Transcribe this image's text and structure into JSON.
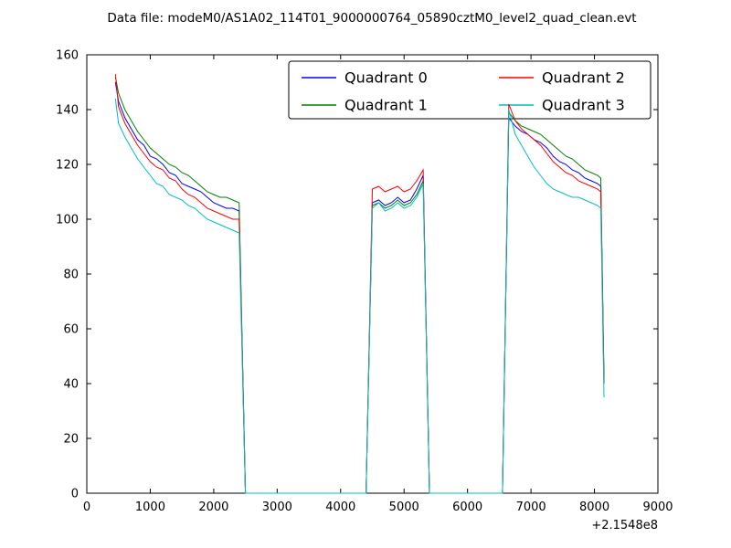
{
  "title": "Data file: modeM0/AS1A02_114T01_9000000764_05890cztM0_level2_quad_clean.evt",
  "chart_data": {
    "type": "line",
    "title": "Data file: modeM0/AS1A02_114T01_9000000764_05890cztM0_level2_quad_clean.evt",
    "xlabel": "",
    "ylabel": "",
    "xlim": [
      0,
      9000
    ],
    "ylim": [
      0,
      160
    ],
    "xticks": [
      0,
      1000,
      2000,
      3000,
      4000,
      5000,
      6000,
      7000,
      8000,
      9000
    ],
    "yticks": [
      0,
      20,
      40,
      60,
      80,
      100,
      120,
      140,
      160
    ],
    "x_offset_label": "+2.1548e8",
    "grid": false,
    "legend_position": "upper center",
    "series": [
      {
        "name": "Quadrant 0",
        "color": "#0000ff",
        "points": [
          [
            450,
            150
          ],
          [
            500,
            143
          ],
          [
            600,
            137
          ],
          [
            700,
            133
          ],
          [
            800,
            129
          ],
          [
            900,
            127
          ],
          [
            1000,
            123
          ],
          [
            1100,
            122
          ],
          [
            1200,
            120
          ],
          [
            1300,
            117
          ],
          [
            1400,
            116
          ],
          [
            1500,
            113
          ],
          [
            1600,
            112
          ],
          [
            1700,
            111
          ],
          [
            1800,
            110
          ],
          [
            1900,
            108
          ],
          [
            2000,
            106
          ],
          [
            2100,
            105
          ],
          [
            2200,
            104
          ],
          [
            2300,
            104
          ],
          [
            2400,
            103
          ],
          [
            2500,
            0
          ],
          [
            4400,
            0
          ],
          [
            4500,
            106
          ],
          [
            4600,
            107
          ],
          [
            4700,
            105
          ],
          [
            4800,
            106
          ],
          [
            4900,
            108
          ],
          [
            5000,
            106
          ],
          [
            5100,
            107
          ],
          [
            5200,
            111
          ],
          [
            5300,
            116
          ],
          [
            5400,
            0
          ],
          [
            6550,
            0
          ],
          [
            6650,
            137
          ],
          [
            6750,
            134
          ],
          [
            6850,
            132
          ],
          [
            6950,
            131
          ],
          [
            7050,
            129
          ],
          [
            7150,
            128
          ],
          [
            7250,
            126
          ],
          [
            7350,
            123
          ],
          [
            7450,
            121
          ],
          [
            7550,
            120
          ],
          [
            7650,
            118
          ],
          [
            7750,
            117
          ],
          [
            7850,
            115
          ],
          [
            7950,
            114
          ],
          [
            8050,
            113
          ],
          [
            8100,
            112
          ],
          [
            8150,
            40
          ]
        ]
      },
      {
        "name": "Quadrant 1",
        "color": "#008000",
        "points": [
          [
            450,
            152
          ],
          [
            500,
            146
          ],
          [
            600,
            140
          ],
          [
            700,
            136
          ],
          [
            800,
            132
          ],
          [
            900,
            129
          ],
          [
            1000,
            126
          ],
          [
            1100,
            124
          ],
          [
            1200,
            122
          ],
          [
            1300,
            120
          ],
          [
            1400,
            119
          ],
          [
            1500,
            117
          ],
          [
            1600,
            116
          ],
          [
            1700,
            114
          ],
          [
            1800,
            112
          ],
          [
            1900,
            110
          ],
          [
            2000,
            109
          ],
          [
            2100,
            108
          ],
          [
            2200,
            108
          ],
          [
            2300,
            107
          ],
          [
            2400,
            106
          ],
          [
            2500,
            0
          ],
          [
            4400,
            0
          ],
          [
            4500,
            105
          ],
          [
            4600,
            106
          ],
          [
            4700,
            104
          ],
          [
            4800,
            105
          ],
          [
            4900,
            107
          ],
          [
            5000,
            105
          ],
          [
            5100,
            106
          ],
          [
            5200,
            109
          ],
          [
            5300,
            114
          ],
          [
            5400,
            0
          ],
          [
            6550,
            0
          ],
          [
            6650,
            139
          ],
          [
            6750,
            136
          ],
          [
            6850,
            134
          ],
          [
            6950,
            133
          ],
          [
            7050,
            132
          ],
          [
            7150,
            131
          ],
          [
            7250,
            129
          ],
          [
            7350,
            127
          ],
          [
            7450,
            125
          ],
          [
            7550,
            123
          ],
          [
            7650,
            122
          ],
          [
            7750,
            120
          ],
          [
            7850,
            118
          ],
          [
            7950,
            117
          ],
          [
            8050,
            116
          ],
          [
            8100,
            115
          ],
          [
            8150,
            42
          ]
        ]
      },
      {
        "name": "Quadrant 2",
        "color": "#ff0000",
        "points": [
          [
            450,
            153
          ],
          [
            500,
            141
          ],
          [
            600,
            135
          ],
          [
            700,
            131
          ],
          [
            800,
            127
          ],
          [
            900,
            124
          ],
          [
            1000,
            121
          ],
          [
            1100,
            119
          ],
          [
            1200,
            118
          ],
          [
            1300,
            115
          ],
          [
            1400,
            114
          ],
          [
            1500,
            111
          ],
          [
            1600,
            109
          ],
          [
            1700,
            108
          ],
          [
            1800,
            106
          ],
          [
            1900,
            104
          ],
          [
            2000,
            103
          ],
          [
            2100,
            102
          ],
          [
            2200,
            101
          ],
          [
            2300,
            100
          ],
          [
            2400,
            100
          ],
          [
            2500,
            0
          ],
          [
            4400,
            0
          ],
          [
            4500,
            111
          ],
          [
            4600,
            112
          ],
          [
            4700,
            110
          ],
          [
            4800,
            111
          ],
          [
            4900,
            112
          ],
          [
            5000,
            110
          ],
          [
            5100,
            111
          ],
          [
            5200,
            114
          ],
          [
            5300,
            118
          ],
          [
            5400,
            0
          ],
          [
            6550,
            0
          ],
          [
            6650,
            142
          ],
          [
            6750,
            136
          ],
          [
            6850,
            133
          ],
          [
            6950,
            131
          ],
          [
            7050,
            129
          ],
          [
            7150,
            127
          ],
          [
            7250,
            124
          ],
          [
            7350,
            121
          ],
          [
            7450,
            119
          ],
          [
            7550,
            117
          ],
          [
            7650,
            116
          ],
          [
            7750,
            114
          ],
          [
            7850,
            113
          ],
          [
            7950,
            112
          ],
          [
            8050,
            111
          ],
          [
            8100,
            110
          ],
          [
            8150,
            40
          ]
        ]
      },
      {
        "name": "Quadrant 3",
        "color": "#00bfbf",
        "points": [
          [
            450,
            144
          ],
          [
            500,
            135
          ],
          [
            600,
            130
          ],
          [
            700,
            126
          ],
          [
            800,
            122
          ],
          [
            900,
            119
          ],
          [
            1000,
            116
          ],
          [
            1100,
            113
          ],
          [
            1200,
            112
          ],
          [
            1300,
            109
          ],
          [
            1400,
            108
          ],
          [
            1500,
            107
          ],
          [
            1600,
            105
          ],
          [
            1700,
            104
          ],
          [
            1800,
            102
          ],
          [
            1900,
            100
          ],
          [
            2000,
            99
          ],
          [
            2100,
            98
          ],
          [
            2200,
            97
          ],
          [
            2300,
            96
          ],
          [
            2400,
            95
          ],
          [
            2500,
            0
          ],
          [
            4400,
            0
          ],
          [
            4500,
            104
          ],
          [
            4600,
            106
          ],
          [
            4700,
            103
          ],
          [
            4800,
            104
          ],
          [
            4900,
            106
          ],
          [
            5000,
            104
          ],
          [
            5100,
            105
          ],
          [
            5200,
            108
          ],
          [
            5300,
            113
          ],
          [
            5400,
            0
          ],
          [
            6550,
            0
          ],
          [
            6650,
            140
          ],
          [
            6750,
            131
          ],
          [
            6850,
            127
          ],
          [
            6950,
            123
          ],
          [
            7050,
            119
          ],
          [
            7150,
            116
          ],
          [
            7250,
            113
          ],
          [
            7350,
            111
          ],
          [
            7450,
            110
          ],
          [
            7550,
            109
          ],
          [
            7650,
            108
          ],
          [
            7750,
            108
          ],
          [
            7850,
            107
          ],
          [
            7950,
            106
          ],
          [
            8050,
            105
          ],
          [
            8100,
            104
          ],
          [
            8150,
            35
          ]
        ]
      }
    ]
  }
}
